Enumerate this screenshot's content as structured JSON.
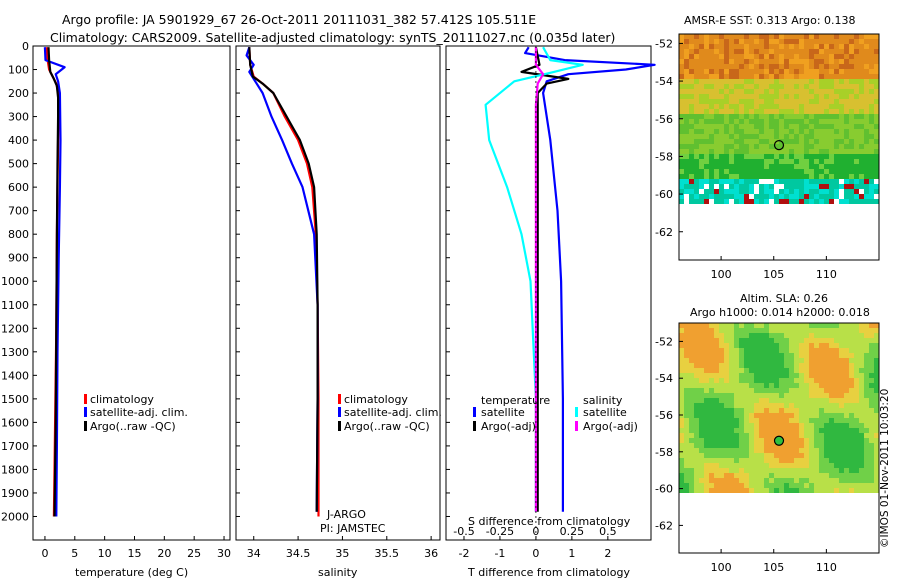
{
  "header": {
    "line1": "Argo profile: JA 5901929_67 26-Oct-2011 20111031_382 57.412S 105.511E",
    "line2": "Climatology: CARS2009. Satellite-adjusted climatology: synTS_20111027.nc (0.035d later)"
  },
  "colors": {
    "climatology": "#ff0000",
    "satellite": "#0000ff",
    "argo": "#000000",
    "sat_salinity": "#00ffff",
    "argo_salinity": "#ff00ff"
  },
  "chart_data": [
    {
      "type": "line",
      "id": "temperature",
      "xlabel": "temperature (deg C)",
      "ylabel": "",
      "xlim": [
        -2,
        31
      ],
      "ylim": [
        2100,
        0
      ],
      "xticks": [
        "0",
        "5",
        "10",
        "15",
        "20",
        "25",
        "30"
      ],
      "yticks": [
        "0",
        "100",
        "200",
        "300",
        "400",
        "500",
        "600",
        "700",
        "800",
        "900",
        "1000",
        "1100",
        "1200",
        "1300",
        "1400",
        "1500",
        "1600",
        "1700",
        "1800",
        "1900",
        "2000"
      ],
      "legend": [
        "climatology",
        "satellite-adj. clim.",
        "Argo(..raw -QC)"
      ],
      "series": [
        {
          "name": "climatology",
          "color": "#ff0000",
          "x": [
            0.3,
            0.4,
            0.7,
            1.3,
            1.9,
            2.2,
            2.3,
            2.2,
            2.1,
            2.0,
            1.9,
            1.7,
            1.5
          ],
          "y": [
            5,
            50,
            100,
            130,
            160,
            200,
            300,
            400,
            600,
            800,
            1200,
            1600,
            2000
          ]
        },
        {
          "name": "satellite-adj. clim.",
          "color": "#0000ff",
          "x": [
            0.0,
            0.1,
            3.3,
            1.8,
            2.2,
            2.5,
            2.6,
            2.5,
            2.3,
            2.1,
            2.0,
            1.9
          ],
          "y": [
            5,
            60,
            90,
            120,
            150,
            200,
            400,
            600,
            900,
            1300,
            1700,
            2000
          ]
        },
        {
          "name": "Argo(..raw -QC)",
          "color": "#000000",
          "x": [
            0.6,
            0.7,
            0.9,
            1.5,
            2.0,
            2.2,
            2.2,
            2.1,
            2.0,
            1.9,
            1.8,
            1.6
          ],
          "y": [
            5,
            60,
            110,
            140,
            170,
            220,
            300,
            500,
            800,
            1200,
            1600,
            2000
          ]
        }
      ]
    },
    {
      "type": "line",
      "id": "salinity",
      "xlabel": "salinity",
      "xlim": [
        33.8,
        36.1
      ],
      "ylim": [
        2100,
        0
      ],
      "xticks": [
        "34",
        "34.5",
        "35",
        "35.5",
        "36"
      ],
      "legend": [
        "climatology",
        "satellite-adj. clim.",
        "Argo(..raw -QC)"
      ],
      "annotations": [
        "J-ARGO",
        "PI: JAMSTEC"
      ],
      "series": [
        {
          "name": "climatology",
          "color": "#ff0000",
          "x": [
            33.95,
            33.96,
            34.0,
            34.1,
            34.22,
            34.35,
            34.5,
            34.6,
            34.66,
            34.7,
            34.72,
            34.73,
            34.73
          ],
          "y": [
            5,
            80,
            130,
            160,
            200,
            300,
            400,
            500,
            600,
            800,
            1100,
            1500,
            2000
          ]
        },
        {
          "name": "satellite-adj. clim.",
          "color": "#0000ff",
          "x": [
            33.95,
            33.92,
            34.0,
            33.95,
            34.0,
            34.1,
            34.2,
            34.32,
            34.43,
            34.55,
            34.68,
            34.72,
            34.72,
            34.71
          ],
          "y": [
            5,
            40,
            80,
            110,
            140,
            200,
            300,
            400,
            500,
            600,
            800,
            1100,
            1500,
            1980
          ]
        },
        {
          "name": "Argo(..raw -QC)",
          "color": "#000000",
          "x": [
            33.95,
            33.96,
            33.99,
            34.1,
            34.22,
            34.37,
            34.52,
            34.62,
            34.68,
            34.71,
            34.72,
            34.72,
            34.71
          ],
          "y": [
            5,
            80,
            130,
            160,
            200,
            300,
            400,
            500,
            600,
            800,
            1100,
            1500,
            1980
          ]
        }
      ]
    },
    {
      "type": "line",
      "id": "differences",
      "xlabel": "T difference from climatology",
      "xlabel_top": "S difference from climatology",
      "xlim": [
        -2.5,
        3.2
      ],
      "ylim": [
        2100,
        0
      ],
      "xticks": [
        "-2",
        "-1",
        "0",
        "1",
        "2"
      ],
      "xticks_top": [
        "-0.5",
        "-0.25",
        "0",
        "0.25",
        "0.5"
      ],
      "legend_temperature": [
        "temperature",
        "satellite",
        "Argo(-adj)"
      ],
      "legend_salinity": [
        "salinity",
        "satellite",
        "Argo(-adj)"
      ],
      "series": [
        {
          "name": "temperature satellite",
          "color": "#0000ff",
          "x": [
            -0.2,
            -0.3,
            0.8,
            3.3,
            2.5,
            0.9,
            0.3,
            0.2,
            0.4,
            0.6,
            0.7,
            0.75,
            0.75
          ],
          "y": [
            5,
            30,
            60,
            80,
            100,
            120,
            150,
            200,
            400,
            700,
            1000,
            1500,
            1980
          ]
        },
        {
          "name": "temperature Argo(-adj)",
          "color": "#000000",
          "x": [
            0.0,
            0.1,
            -0.4,
            0.9,
            0.3,
            0.05,
            0.05,
            0.05,
            0.05,
            0.05,
            0.05
          ],
          "y": [
            5,
            80,
            110,
            140,
            160,
            200,
            400,
            800,
            1200,
            1600,
            1980
          ]
        },
        {
          "name": "salinity satellite",
          "color": "#00ffff",
          "x": [
            0.2,
            0.4,
            1.3,
            0.5,
            -0.6,
            -1.4,
            -1.3,
            -0.8,
            -0.4,
            -0.15,
            0.0,
            0.0
          ],
          "y": [
            5,
            60,
            80,
            110,
            150,
            250,
            400,
            600,
            800,
            1000,
            1500,
            1980
          ]
        },
        {
          "name": "salinity Argo(-adj)",
          "color": "#ff00ff",
          "x": [
            0.0,
            0.0,
            0.2,
            0.05,
            0.0,
            0.0,
            0.0
          ],
          "y": [
            5,
            80,
            120,
            160,
            250,
            800,
            1980
          ]
        }
      ]
    }
  ],
  "maps": {
    "top": {
      "title": "AMSR-E SST: 0.313 Argo: 0.138",
      "xticks": [
        "100",
        "105",
        "110"
      ],
      "yticks": [
        "-52",
        "-54",
        "-56",
        "-58",
        "-60",
        "-62"
      ],
      "marker": {
        "lon": 105.5,
        "lat": -57.4
      }
    },
    "bottom": {
      "title1": "Altim. SLA: 0.26",
      "title2": "Argo h1000: 0.014 h2000: 0.018",
      "xticks": [
        "100",
        "105",
        "110"
      ],
      "yticks": [
        "-52",
        "-54",
        "-56",
        "-58",
        "-60",
        "-62"
      ],
      "marker": {
        "lon": 105.5,
        "lat": -57.4
      }
    }
  },
  "footer": {
    "credit": "©IMOS 01-Nov-2011 10:03:20"
  }
}
